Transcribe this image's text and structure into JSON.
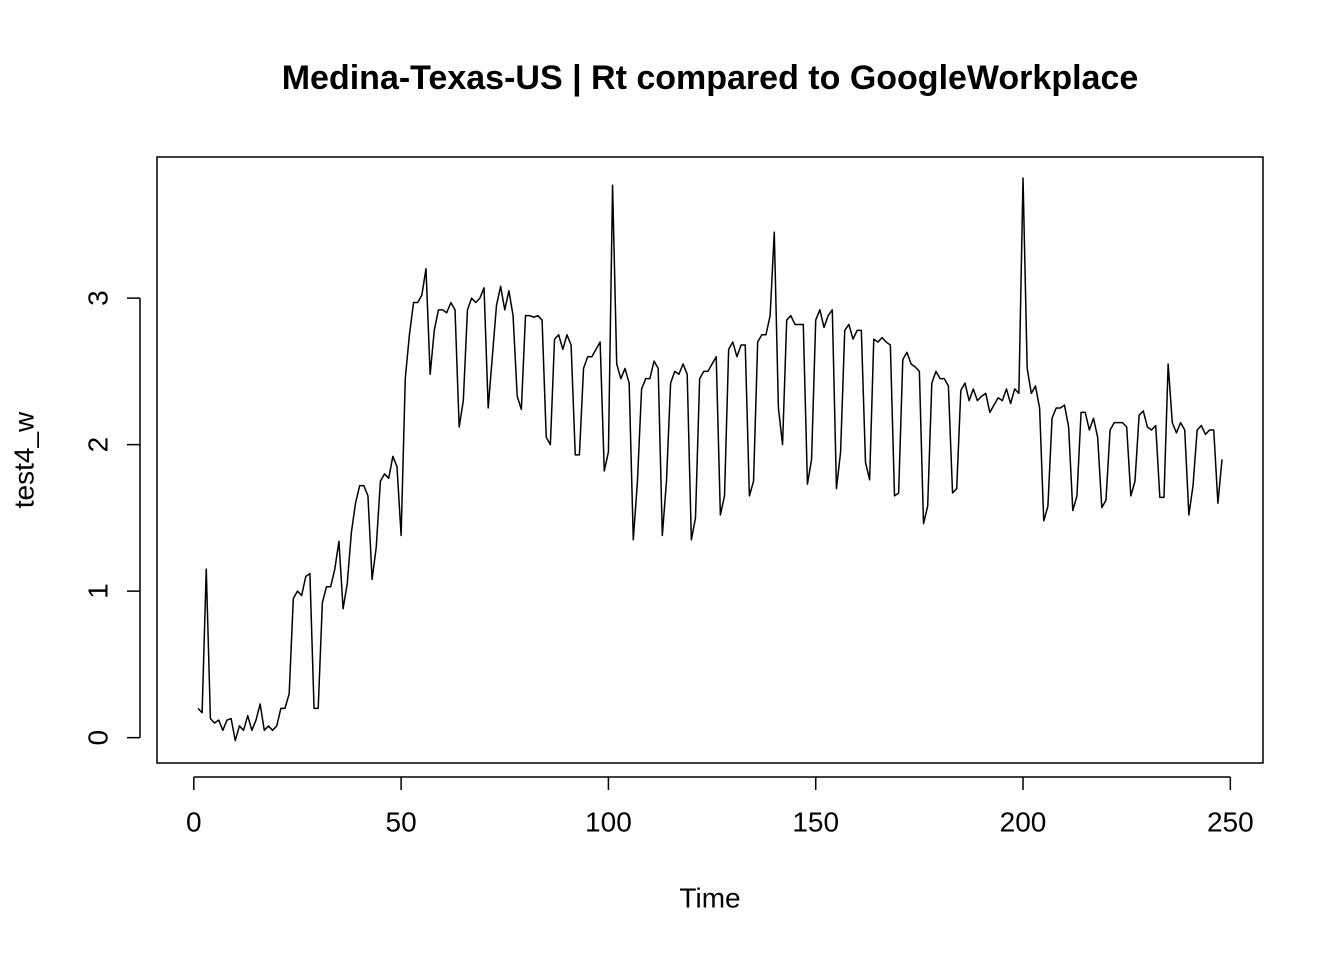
{
  "chart_data": {
    "type": "line",
    "title": "Medina-Texas-US | Rt compared to GoogleWorkplace",
    "x_label": "Time",
    "y_label": "test4_w",
    "xlim": [
      -8.88,
      257.88
    ],
    "ylim": [
      -0.173,
      3.963
    ],
    "xticks": [
      0,
      50,
      100,
      150,
      200,
      250
    ],
    "yticks": [
      0,
      1,
      2,
      3
    ],
    "grid": false,
    "x": [
      1,
      2,
      3,
      4,
      5,
      6,
      7,
      8,
      9,
      10,
      11,
      12,
      13,
      14,
      15,
      16,
      17,
      18,
      19,
      20,
      21,
      22,
      23,
      24,
      25,
      26,
      27,
      28,
      29,
      30,
      31,
      32,
      33,
      34,
      35,
      36,
      37,
      38,
      39,
      40,
      41,
      42,
      43,
      44,
      45,
      46,
      47,
      48,
      49,
      50,
      51,
      52,
      53,
      54,
      55,
      56,
      57,
      58,
      59,
      60,
      61,
      62,
      63,
      64,
      65,
      66,
      67,
      68,
      69,
      70,
      71,
      72,
      73,
      74,
      75,
      76,
      77,
      78,
      79,
      80,
      81,
      82,
      83,
      84,
      85,
      86,
      87,
      88,
      89,
      90,
      91,
      92,
      93,
      94,
      95,
      96,
      97,
      98,
      99,
      100,
      101,
      102,
      103,
      104,
      105,
      106,
      107,
      108,
      109,
      110,
      111,
      112,
      113,
      114,
      115,
      116,
      117,
      118,
      119,
      120,
      121,
      122,
      123,
      124,
      125,
      126,
      127,
      128,
      129,
      130,
      131,
      132,
      133,
      134,
      135,
      136,
      137,
      138,
      139,
      140,
      141,
      142,
      143,
      144,
      145,
      146,
      147,
      148,
      149,
      150,
      151,
      152,
      153,
      154,
      155,
      156,
      157,
      158,
      159,
      160,
      161,
      162,
      163,
      164,
      165,
      166,
      167,
      168,
      169,
      170,
      171,
      172,
      173,
      174,
      175,
      176,
      177,
      178,
      179,
      180,
      181,
      182,
      183,
      184,
      185,
      186,
      187,
      188,
      189,
      190,
      191,
      192,
      193,
      194,
      195,
      196,
      197,
      198,
      199,
      200,
      201,
      202,
      203,
      204,
      205,
      206,
      207,
      208,
      209,
      210,
      211,
      212,
      213,
      214,
      215,
      216,
      217,
      218,
      219,
      220,
      221,
      222,
      223,
      224,
      225,
      226,
      227,
      228,
      229,
      230,
      231,
      232,
      233,
      234,
      235,
      236,
      237,
      238,
      239,
      240,
      241,
      242,
      243,
      244,
      245,
      246,
      247,
      248
    ],
    "series": [
      {
        "color": "#000000",
        "values": [
          0.2,
          0.17,
          1.15,
          0.13,
          0.1,
          0.12,
          0.05,
          0.12,
          0.13,
          -0.02,
          0.08,
          0.05,
          0.15,
          0.05,
          0.12,
          0.23,
          0.05,
          0.08,
          0.05,
          0.08,
          0.2,
          0.2,
          0.3,
          0.95,
          1.0,
          0.97,
          1.1,
          1.12,
          0.2,
          0.2,
          0.92,
          1.03,
          1.03,
          1.15,
          1.34,
          0.88,
          1.05,
          1.4,
          1.6,
          1.72,
          1.72,
          1.65,
          1.08,
          1.3,
          1.75,
          1.8,
          1.77,
          1.92,
          1.85,
          1.38,
          2.45,
          2.75,
          2.97,
          2.97,
          3.02,
          3.2,
          2.48,
          2.78,
          2.92,
          2.92,
          2.9,
          2.97,
          2.92,
          2.12,
          2.3,
          2.92,
          3.0,
          2.97,
          3.0,
          3.07,
          2.25,
          2.6,
          2.95,
          3.08,
          2.92,
          3.05,
          2.88,
          2.33,
          2.24,
          2.88,
          2.88,
          2.87,
          2.88,
          2.85,
          2.05,
          2.0,
          2.72,
          2.75,
          2.65,
          2.75,
          2.68,
          1.93,
          1.93,
          2.52,
          2.6,
          2.6,
          2.65,
          2.7,
          1.82,
          1.95,
          3.77,
          2.55,
          2.45,
          2.52,
          2.42,
          1.35,
          1.75,
          2.38,
          2.45,
          2.45,
          2.57,
          2.52,
          1.38,
          1.75,
          2.42,
          2.5,
          2.48,
          2.55,
          2.48,
          1.35,
          1.5,
          2.45,
          2.5,
          2.5,
          2.55,
          2.6,
          1.52,
          1.65,
          2.65,
          2.7,
          2.6,
          2.68,
          2.68,
          1.65,
          1.75,
          2.7,
          2.75,
          2.75,
          2.88,
          3.45,
          2.25,
          2.0,
          2.85,
          2.88,
          2.82,
          2.82,
          2.82,
          1.73,
          1.9,
          2.85,
          2.92,
          2.8,
          2.88,
          2.92,
          1.7,
          1.95,
          2.78,
          2.82,
          2.72,
          2.78,
          2.78,
          1.88,
          1.76,
          2.72,
          2.7,
          2.73,
          2.7,
          2.68,
          1.65,
          1.67,
          2.58,
          2.63,
          2.55,
          2.53,
          2.5,
          1.46,
          1.58,
          2.42,
          2.5,
          2.45,
          2.45,
          2.4,
          1.67,
          1.7,
          2.37,
          2.42,
          2.3,
          2.38,
          2.3,
          2.33,
          2.35,
          2.22,
          2.27,
          2.32,
          2.3,
          2.38,
          2.28,
          2.38,
          2.35,
          3.82,
          2.52,
          2.35,
          2.4,
          2.25,
          1.48,
          1.58,
          2.18,
          2.25,
          2.25,
          2.27,
          2.12,
          1.55,
          1.65,
          2.22,
          2.22,
          2.1,
          2.18,
          2.05,
          1.57,
          1.62,
          2.1,
          2.15,
          2.15,
          2.15,
          2.12,
          1.65,
          1.75,
          2.2,
          2.23,
          2.12,
          2.1,
          2.13,
          1.64,
          1.64,
          2.55,
          2.15,
          2.08,
          2.15,
          2.1,
          1.52,
          1.72,
          2.1,
          2.13,
          2.07,
          2.1,
          2.1,
          1.6,
          1.9
        ]
      }
    ]
  }
}
